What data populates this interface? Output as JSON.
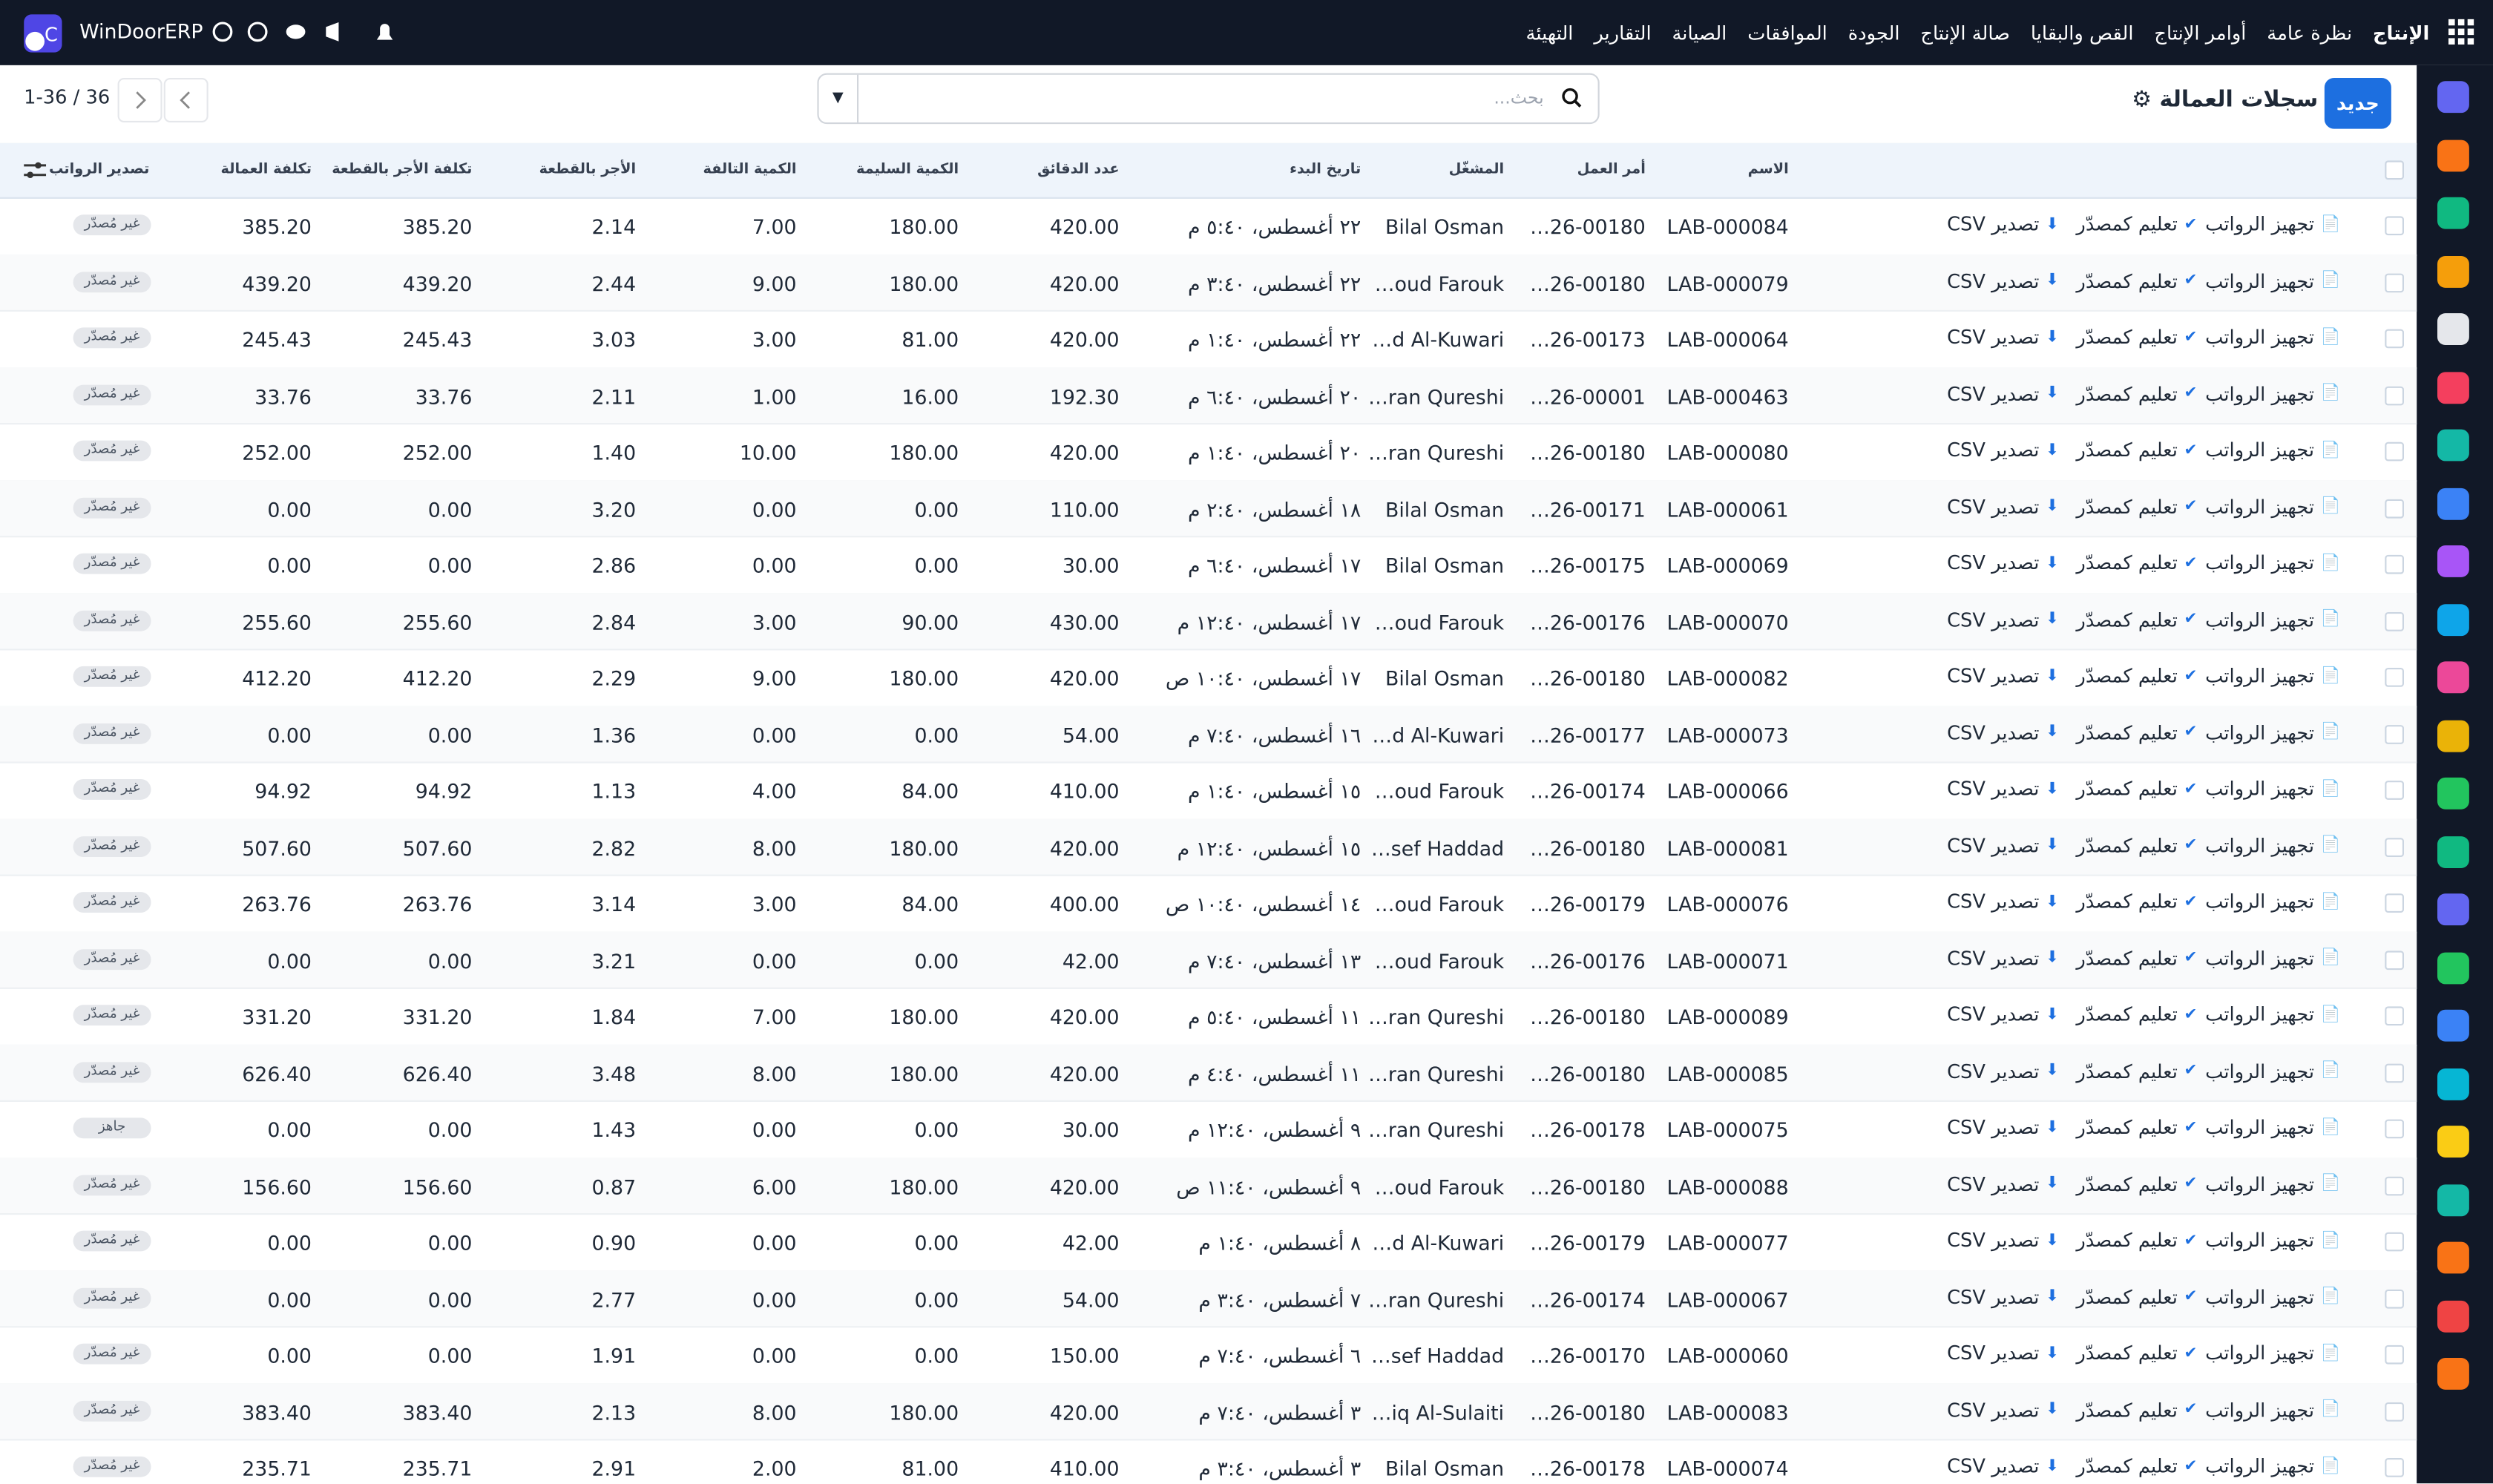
{
  "topbar": {
    "brand": "WinDoorERP",
    "nav": [
      "الإنتاج",
      "نظرة عامة",
      "أوامر الإنتاج",
      "القص والبقايا",
      "صالة الإنتاج",
      "الجودة",
      "الموافقات",
      "الصيانة",
      "التقارير",
      "التهيئة"
    ]
  },
  "toolbar": {
    "new_button": "جديد",
    "title": "سجلات العمالة",
    "search_placeholder": "بحث...",
    "pagination": "1-36 / 36"
  },
  "table": {
    "columns": [
      "الاسم",
      "أمر العمل",
      "المشغّل",
      "تاريخ البدء",
      "عدد الدقائق",
      "الكمية السليمة",
      "الكمية التالفة",
      "الأجر بالقطعة",
      "تكلفة الأجر بالقطعة",
      "تكلفة العمالة",
      "تصدير الرواتب"
    ],
    "actions": [
      "تجهيز الرواتب",
      "تعليم كمصدّر",
      "تصدير CSV"
    ],
    "rows": [
      [
        "LAB-000084",
        "…26-00180",
        "Bilal Osman",
        "٢٢ أغسطس، ٥:٤٠ م",
        "420.00",
        "180.00",
        "7.00",
        "2.14",
        "385.20",
        "385.20",
        "غير مُصدّر"
      ],
      [
        "LAB-000079",
        "…26-00180",
        "…oud Farouk",
        "٢٢ أغسطس، ٣:٤٠ م",
        "420.00",
        "180.00",
        "9.00",
        "2.44",
        "439.20",
        "439.20",
        "غير مُصدّر"
      ],
      [
        "LAB-000064",
        "…26-00173",
        "…d Al-Kuwari",
        "٢٢ أغسطس، ١:٤٠ م",
        "420.00",
        "81.00",
        "3.00",
        "3.03",
        "245.43",
        "245.43",
        "غير مُصدّر"
      ],
      [
        "LAB-000463",
        "…26-00001",
        "…ran Qureshi",
        "٢٠ أغسطس، ٦:٤٠ م",
        "192.30",
        "16.00",
        "1.00",
        "2.11",
        "33.76",
        "33.76",
        "غير مُصدّر"
      ],
      [
        "LAB-000080",
        "…26-00180",
        "…ran Qureshi",
        "٢٠ أغسطس، ١:٤٠ م",
        "420.00",
        "180.00",
        "10.00",
        "1.40",
        "252.00",
        "252.00",
        "غير مُصدّر"
      ],
      [
        "LAB-000061",
        "…26-00171",
        "Bilal Osman",
        "١٨ أغسطس، ٢:٤٠ م",
        "110.00",
        "0.00",
        "0.00",
        "3.20",
        "0.00",
        "0.00",
        "غير مُصدّر"
      ],
      [
        "LAB-000069",
        "…26-00175",
        "Bilal Osman",
        "١٧ أغسطس، ٦:٤٠ م",
        "30.00",
        "0.00",
        "0.00",
        "2.86",
        "0.00",
        "0.00",
        "غير مُصدّر"
      ],
      [
        "LAB-000070",
        "…26-00176",
        "…oud Farouk",
        "١٧ أغسطس، ١٢:٤٠ م",
        "430.00",
        "90.00",
        "3.00",
        "2.84",
        "255.60",
        "255.60",
        "غير مُصدّر"
      ],
      [
        "LAB-000082",
        "…26-00180",
        "Bilal Osman",
        "١٧ أغسطس، ١٠:٤٠ ص",
        "420.00",
        "180.00",
        "9.00",
        "2.29",
        "412.20",
        "412.20",
        "غير مُصدّر"
      ],
      [
        "LAB-000073",
        "…26-00177",
        "…d Al-Kuwari",
        "١٦ أغسطس، ٧:٤٠ م",
        "54.00",
        "0.00",
        "0.00",
        "1.36",
        "0.00",
        "0.00",
        "غير مُصدّر"
      ],
      [
        "LAB-000066",
        "…26-00174",
        "…oud Farouk",
        "١٥ أغسطس، ١:٤٠ م",
        "410.00",
        "84.00",
        "4.00",
        "1.13",
        "94.92",
        "94.92",
        "غير مُصدّر"
      ],
      [
        "LAB-000081",
        "…26-00180",
        "…sef Haddad",
        "١٥ أغسطس، ١٢:٤٠ م",
        "420.00",
        "180.00",
        "8.00",
        "2.82",
        "507.60",
        "507.60",
        "غير مُصدّر"
      ],
      [
        "LAB-000076",
        "…26-00179",
        "…oud Farouk",
        "١٤ أغسطس، ١٠:٤٠ ص",
        "400.00",
        "84.00",
        "3.00",
        "3.14",
        "263.76",
        "263.76",
        "غير مُصدّر"
      ],
      [
        "LAB-000071",
        "…26-00176",
        "…oud Farouk",
        "١٣ أغسطس، ٧:٤٠ م",
        "42.00",
        "0.00",
        "0.00",
        "3.21",
        "0.00",
        "0.00",
        "غير مُصدّر"
      ],
      [
        "LAB-000089",
        "…26-00180",
        "…ran Qureshi",
        "١١ أغسطس، ٥:٤٠ م",
        "420.00",
        "180.00",
        "7.00",
        "1.84",
        "331.20",
        "331.20",
        "غير مُصدّر"
      ],
      [
        "LAB-000085",
        "…26-00180",
        "…ran Qureshi",
        "١١ أغسطس، ٤:٤٠ م",
        "420.00",
        "180.00",
        "8.00",
        "3.48",
        "626.40",
        "626.40",
        "غير مُصدّر"
      ],
      [
        "LAB-000075",
        "…26-00178",
        "…ran Qureshi",
        "٩ أغسطس، ١٢:٤٠ م",
        "30.00",
        "0.00",
        "0.00",
        "1.43",
        "0.00",
        "0.00",
        "جاهز"
      ],
      [
        "LAB-000088",
        "…26-00180",
        "…oud Farouk",
        "٩ أغسطس، ١١:٤٠ ص",
        "420.00",
        "180.00",
        "6.00",
        "0.87",
        "156.60",
        "156.60",
        "غير مُصدّر"
      ],
      [
        "LAB-000077",
        "…26-00179",
        "…d Al-Kuwari",
        "٨ أغسطس، ١:٤٠ م",
        "42.00",
        "0.00",
        "0.00",
        "0.90",
        "0.00",
        "0.00",
        "غير مُصدّر"
      ],
      [
        "LAB-000067",
        "…26-00174",
        "…ran Qureshi",
        "٧ أغسطس، ٣:٤٠ م",
        "54.00",
        "0.00",
        "0.00",
        "2.77",
        "0.00",
        "0.00",
        "غير مُصدّر"
      ],
      [
        "LAB-000060",
        "…26-00170",
        "…sef Haddad",
        "٦ أغسطس، ٧:٤٠ م",
        "150.00",
        "0.00",
        "0.00",
        "1.91",
        "0.00",
        "0.00",
        "غير مُصدّر"
      ],
      [
        "LAB-000083",
        "…26-00180",
        "…iq Al-Sulaiti",
        "٣ أغسطس، ٧:٤٠ م",
        "420.00",
        "180.00",
        "8.00",
        "2.13",
        "383.40",
        "383.40",
        "غير مُصدّر"
      ],
      [
        "LAB-000074",
        "…26-00178",
        "Bilal Osman",
        "٣ أغسطس، ٣:٤٠ م",
        "410.00",
        "81.00",
        "2.00",
        "2.91",
        "235.71",
        "235.71",
        "غير مُصدّر"
      ]
    ]
  }
}
